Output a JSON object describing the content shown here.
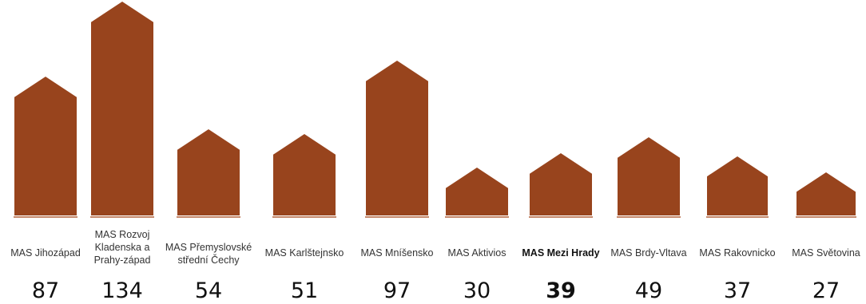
{
  "chart_data": {
    "type": "bar",
    "categories": [
      [
        "MAS Jihozápad"
      ],
      [
        "MAS Rozvoj",
        "Kladenska a",
        "Prahy-západ"
      ],
      [
        "MAS Přemyslovské",
        "střední Čechy"
      ],
      [
        "MAS Karlštejnsko"
      ],
      [
        "MAS Mníšensko"
      ],
      [
        "MAS Aktivios"
      ],
      [
        "MAS Mezi Hrady"
      ],
      [
        "MAS Brdy-Vltava"
      ],
      [
        "MAS Rakovnicko"
      ],
      [
        "MAS Světovina"
      ]
    ],
    "values": [
      87,
      134,
      54,
      51,
      97,
      30,
      39,
      49,
      37,
      27
    ],
    "highlight_index": 6,
    "bar_shape": "house",
    "colors": {
      "bar": "#98441D",
      "baseline": "#B0603A",
      "text": "#333333"
    },
    "legend": "none",
    "grid": false
  }
}
